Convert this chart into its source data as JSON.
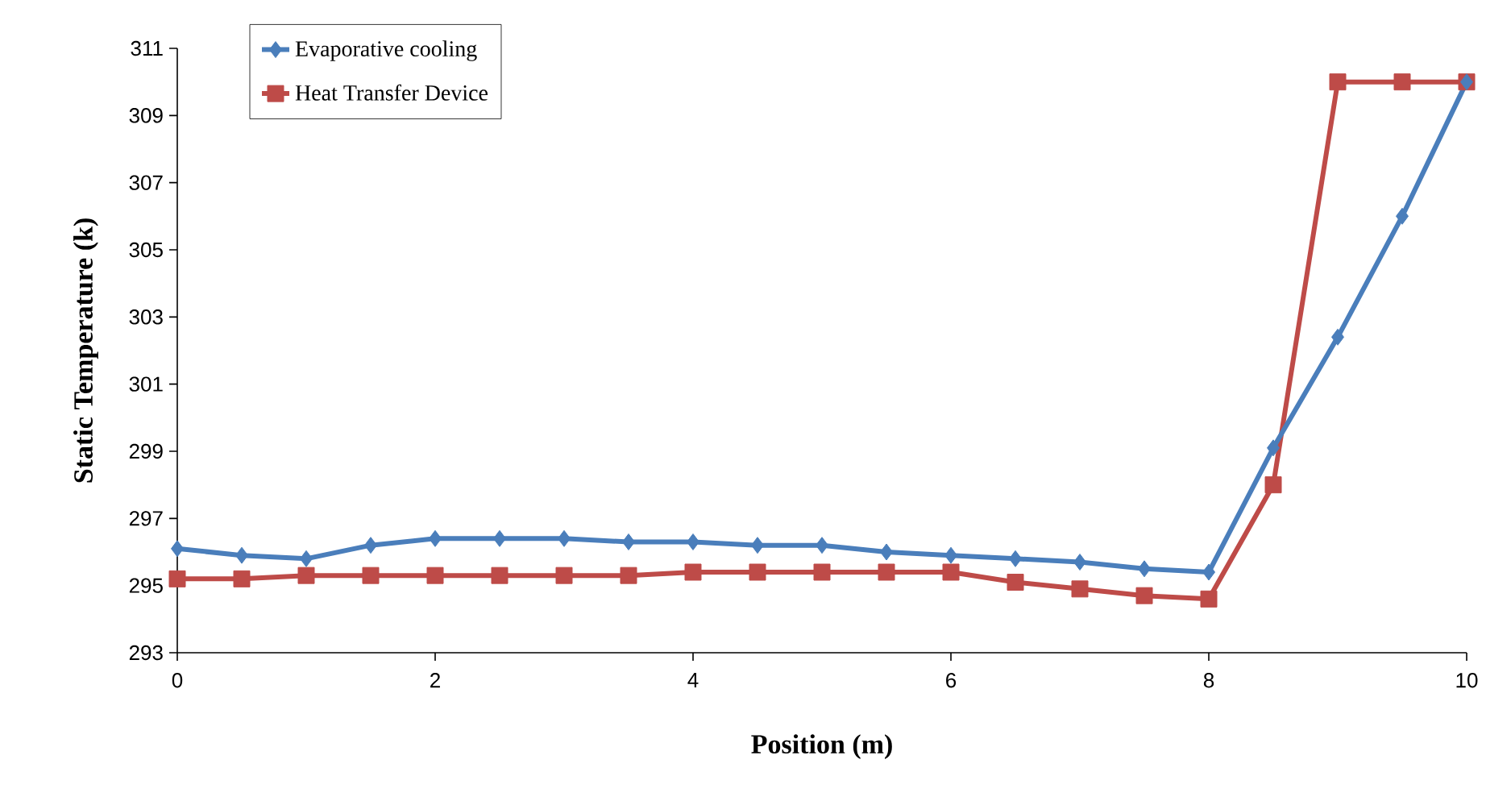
{
  "chart_data": {
    "type": "line",
    "xlabel": "Position (m)",
    "ylabel": "Static Temperature (k)",
    "x": [
      0,
      0.5,
      1,
      1.5,
      2,
      2.5,
      3,
      3.5,
      4,
      4.5,
      5,
      5.5,
      6,
      6.5,
      7,
      7.5,
      8,
      8.5,
      9,
      9.5,
      10
    ],
    "series": [
      {
        "name": "Evaporative cooling",
        "color": "#4a7ebb",
        "marker": "diamond",
        "values": [
          296.1,
          295.9,
          295.8,
          296.2,
          296.4,
          296.4,
          296.4,
          296.3,
          296.3,
          296.2,
          296.2,
          296.0,
          295.9,
          295.8,
          295.7,
          295.5,
          295.4,
          299.1,
          302.4,
          306.0,
          310.0
        ]
      },
      {
        "name": "Heat Transfer Device",
        "color": "#be4b48",
        "marker": "square",
        "values": [
          295.2,
          295.2,
          295.3,
          295.3,
          295.3,
          295.3,
          295.3,
          295.3,
          295.4,
          295.4,
          295.4,
          295.4,
          295.4,
          295.1,
          294.9,
          294.7,
          294.6,
          298.0,
          310.0,
          310.0,
          310.0
        ]
      }
    ],
    "xlim": [
      0,
      10
    ],
    "ylim": [
      293,
      311
    ],
    "xticks": [
      0,
      2,
      4,
      6,
      8,
      10
    ],
    "yticks": [
      293,
      295,
      297,
      299,
      301,
      303,
      305,
      307,
      309,
      311
    ],
    "legend": "top left",
    "line_style": "solid",
    "grid": false
  }
}
